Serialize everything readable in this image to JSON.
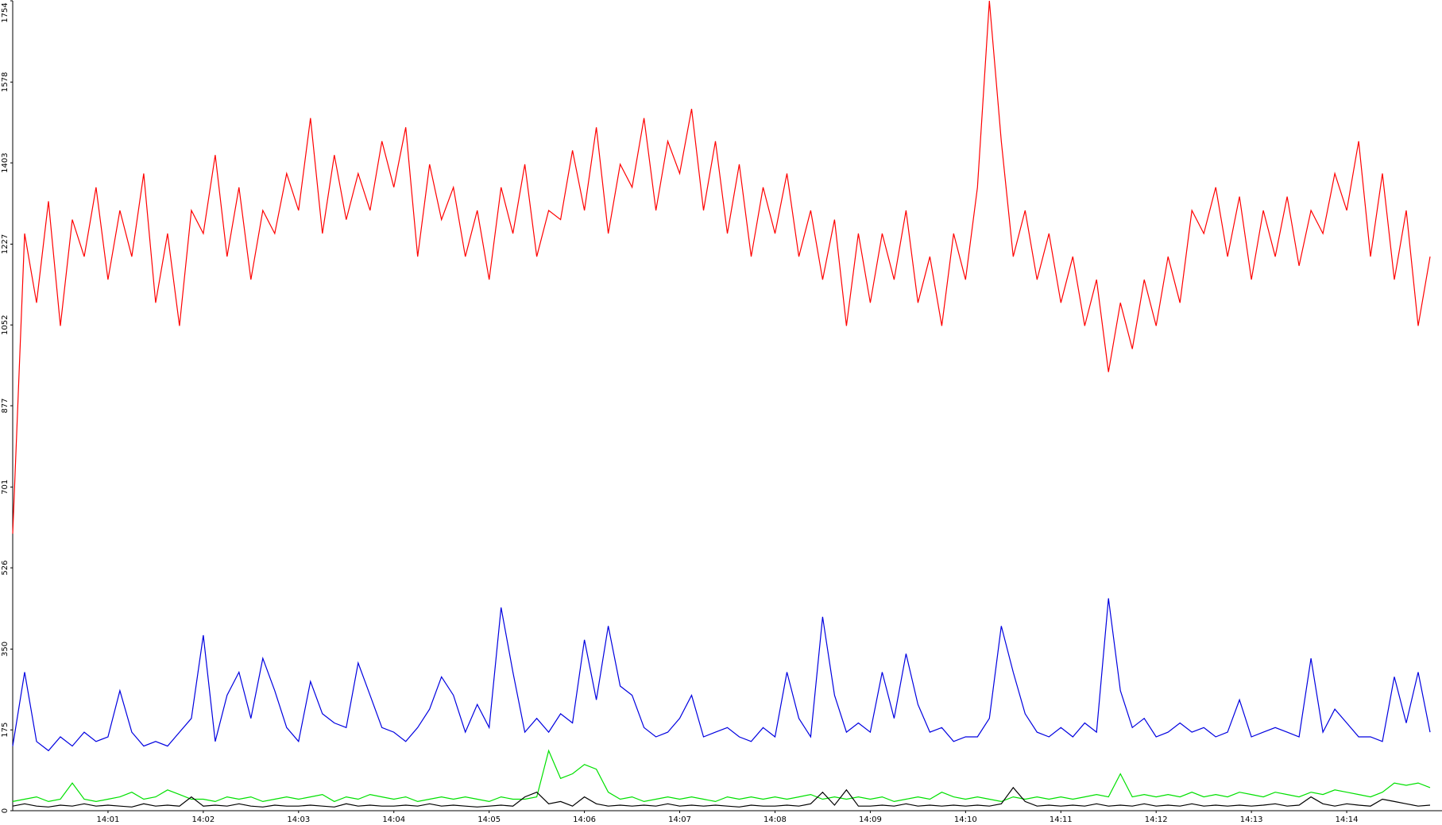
{
  "chart_data": {
    "type": "line",
    "categories": [
      null,
      null,
      null,
      null,
      null,
      null,
      null,
      null,
      "14:01",
      null,
      null,
      null,
      null,
      null,
      null,
      null,
      "14:02",
      null,
      null,
      null,
      null,
      null,
      null,
      null,
      "14:03",
      null,
      null,
      null,
      null,
      null,
      null,
      null,
      "14:04",
      null,
      null,
      null,
      null,
      null,
      null,
      null,
      "14:05",
      null,
      null,
      null,
      null,
      null,
      null,
      null,
      "14:06",
      null,
      null,
      null,
      null,
      null,
      null,
      null,
      "14:07",
      null,
      null,
      null,
      null,
      null,
      null,
      null,
      "14:08",
      null,
      null,
      null,
      null,
      null,
      null,
      null,
      "14:09",
      null,
      null,
      null,
      null,
      null,
      null,
      null,
      "14:10",
      null,
      null,
      null,
      null,
      null,
      null,
      null,
      "14:11",
      null,
      null,
      null,
      null,
      null,
      null,
      null,
      "14:12",
      null,
      null,
      null,
      null,
      null,
      null,
      null,
      "14:13",
      null,
      null,
      null,
      null,
      null,
      null,
      null,
      "14:14",
      null,
      null,
      null,
      null,
      null,
      null,
      null
    ],
    "series": [
      {
        "color": "#ff0000",
        "values": [
          600,
          1250,
          1100,
          1320,
          1050,
          1280,
          1200,
          1350,
          1150,
          1300,
          1200,
          1380,
          1100,
          1250,
          1050,
          1300,
          1250,
          1420,
          1200,
          1350,
          1150,
          1300,
          1250,
          1380,
          1300,
          1500,
          1250,
          1420,
          1280,
          1380,
          1300,
          1450,
          1350,
          1480,
          1200,
          1400,
          1280,
          1350,
          1200,
          1300,
          1150,
          1350,
          1250,
          1400,
          1200,
          1300,
          1280,
          1430,
          1300,
          1480,
          1250,
          1400,
          1350,
          1500,
          1300,
          1450,
          1380,
          1520,
          1300,
          1450,
          1250,
          1400,
          1200,
          1350,
          1250,
          1380,
          1200,
          1300,
          1150,
          1280,
          1050,
          1250,
          1100,
          1250,
          1150,
          1300,
          1100,
          1200,
          1050,
          1250,
          1150,
          1350,
          1754,
          1450,
          1200,
          1300,
          1150,
          1250,
          1100,
          1200,
          1050,
          1150,
          950,
          1100,
          1000,
          1150,
          1050,
          1200,
          1100,
          1300,
          1250,
          1350,
          1200,
          1330,
          1150,
          1300,
          1200,
          1330,
          1180,
          1300,
          1250,
          1380,
          1300,
          1450,
          1200,
          1380,
          1150,
          1300,
          1050,
          1200
        ]
      },
      {
        "color": "#0000e0",
        "values": [
          140,
          300,
          150,
          130,
          160,
          140,
          170,
          150,
          160,
          260,
          170,
          140,
          150,
          140,
          170,
          200,
          380,
          150,
          250,
          300,
          200,
          330,
          260,
          180,
          150,
          280,
          210,
          190,
          180,
          320,
          250,
          180,
          170,
          150,
          180,
          220,
          290,
          250,
          170,
          230,
          180,
          440,
          300,
          170,
          200,
          170,
          210,
          190,
          370,
          240,
          400,
          270,
          250,
          180,
          160,
          170,
          200,
          250,
          160,
          170,
          180,
          160,
          150,
          180,
          160,
          300,
          200,
          160,
          420,
          250,
          170,
          190,
          170,
          300,
          200,
          340,
          230,
          170,
          180,
          150,
          160,
          160,
          200,
          400,
          300,
          210,
          170,
          160,
          180,
          160,
          190,
          170,
          460,
          260,
          180,
          200,
          160,
          170,
          190,
          170,
          180,
          160,
          170,
          240,
          160,
          170,
          180,
          170,
          160,
          330,
          170,
          220,
          190,
          160,
          160,
          150,
          290,
          190,
          300,
          170
        ]
      },
      {
        "color": "#00e000",
        "values": [
          20,
          25,
          30,
          20,
          25,
          60,
          25,
          20,
          25,
          30,
          40,
          25,
          30,
          45,
          35,
          25,
          25,
          20,
          30,
          25,
          30,
          20,
          25,
          30,
          25,
          30,
          35,
          20,
          30,
          25,
          35,
          30,
          25,
          30,
          20,
          25,
          30,
          25,
          30,
          25,
          20,
          30,
          25,
          25,
          30,
          130,
          70,
          80,
          100,
          90,
          40,
          25,
          30,
          20,
          25,
          30,
          25,
          30,
          25,
          20,
          30,
          25,
          30,
          25,
          30,
          25,
          30,
          35,
          25,
          30,
          25,
          30,
          25,
          30,
          20,
          25,
          30,
          25,
          40,
          30,
          25,
          30,
          25,
          20,
          30,
          25,
          30,
          25,
          30,
          25,
          30,
          35,
          30,
          80,
          30,
          35,
          30,
          35,
          30,
          40,
          30,
          35,
          30,
          40,
          35,
          30,
          40,
          35,
          30,
          40,
          35,
          45,
          40,
          35,
          30,
          40,
          60,
          55,
          60,
          50
        ]
      },
      {
        "color": "#000000",
        "values": [
          10,
          15,
          10,
          8,
          12,
          10,
          15,
          10,
          12,
          10,
          8,
          15,
          10,
          12,
          10,
          30,
          10,
          12,
          10,
          15,
          10,
          8,
          12,
          10,
          10,
          12,
          10,
          8,
          15,
          10,
          12,
          10,
          10,
          12,
          10,
          15,
          10,
          12,
          10,
          8,
          10,
          12,
          10,
          30,
          40,
          15,
          20,
          10,
          30,
          15,
          10,
          12,
          10,
          12,
          10,
          15,
          10,
          12,
          10,
          12,
          10,
          8,
          12,
          10,
          10,
          12,
          10,
          15,
          40,
          12,
          45,
          10,
          10,
          12,
          10,
          15,
          10,
          12,
          10,
          12,
          10,
          12,
          10,
          15,
          50,
          20,
          10,
          12,
          10,
          12,
          10,
          15,
          10,
          12,
          10,
          15,
          10,
          12,
          10,
          15,
          10,
          12,
          10,
          12,
          10,
          12,
          15,
          10,
          12,
          30,
          15,
          10,
          15,
          12,
          10,
          25,
          20,
          15,
          10,
          12
        ]
      }
    ],
    "ylim": [
      0,
      1754
    ],
    "yticks": [
      0,
      175,
      350,
      526,
      701,
      877,
      1052,
      1227,
      1403,
      1578,
      1754
    ],
    "grid": false
  }
}
